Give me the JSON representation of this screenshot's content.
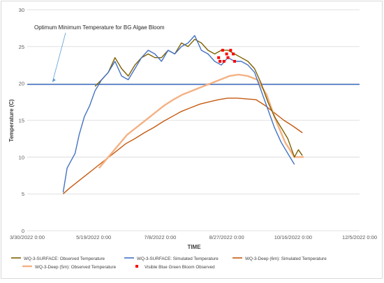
{
  "chart_data": {
    "type": "line",
    "title": "",
    "xlabel": "TIME",
    "ylabel": "Temperature (C)",
    "ylim": [
      0,
      30
    ],
    "yticks": [
      0,
      5,
      10,
      15,
      20,
      25,
      30
    ],
    "xlim": [
      "2022-03-30",
      "2022-12-05"
    ],
    "xticks": [
      "3/30/2022 0:00",
      "5/19/2022 0:00",
      "7/8/2022 0:00",
      "8/27/2022 0:00",
      "10/16/2022 0:00",
      "12/5/2022 0:00"
    ],
    "grid": "horizontal",
    "legend_position": "bottom",
    "annotation": {
      "text": "Optimum Minimum Temperature for BG Algae Bloom",
      "points_to": {
        "x": "2022-04-18",
        "y": 20
      }
    },
    "threshold_line": {
      "y": 19.85,
      "color": "#4472c4"
    },
    "series": [
      {
        "name": "WQ-3-SURFACE: Observed Temperature",
        "color": "#7f6000",
        "kind": "line",
        "points": [
          [
            "2022-05-20",
            19.6
          ],
          [
            "2022-05-25",
            20.5
          ],
          [
            "2022-05-30",
            21.5
          ],
          [
            "2022-06-04",
            23.5
          ],
          [
            "2022-06-09",
            22.0
          ],
          [
            "2022-06-14",
            21.0
          ],
          [
            "2022-06-19",
            22.5
          ],
          [
            "2022-06-24",
            23.5
          ],
          [
            "2022-06-29",
            24.0
          ],
          [
            "2022-07-04",
            23.5
          ],
          [
            "2022-07-09",
            23.5
          ],
          [
            "2022-07-14",
            24.5
          ],
          [
            "2022-07-19",
            24.0
          ],
          [
            "2022-07-24",
            25.5
          ],
          [
            "2022-07-29",
            25.0
          ],
          [
            "2022-08-03",
            26.0
          ],
          [
            "2022-08-08",
            25.5
          ],
          [
            "2022-08-13",
            24.5
          ],
          [
            "2022-08-18",
            24.0
          ],
          [
            "2022-08-23",
            24.5
          ],
          [
            "2022-08-28",
            24.5
          ],
          [
            "2022-09-02",
            24.0
          ],
          [
            "2022-09-07",
            23.5
          ],
          [
            "2022-09-12",
            23.0
          ],
          [
            "2022-09-17",
            22.0
          ],
          [
            "2022-09-22",
            20.0
          ],
          [
            "2022-09-27",
            17.5
          ],
          [
            "2022-10-02",
            15.5
          ],
          [
            "2022-10-07",
            14.0
          ],
          [
            "2022-10-12",
            12.5
          ],
          [
            "2022-10-17",
            10.0
          ],
          [
            "2022-10-20",
            11.0
          ],
          [
            "2022-10-23",
            10.2
          ]
        ]
      },
      {
        "name": "WQ-3-SURFACE: Simulated Temperature",
        "color": "#4472c4",
        "kind": "line",
        "points": [
          [
            "2022-04-26",
            5.2
          ],
          [
            "2022-04-29",
            8.5
          ],
          [
            "2022-05-02",
            9.5
          ],
          [
            "2022-05-05",
            10.5
          ],
          [
            "2022-05-08",
            13.0
          ],
          [
            "2022-05-12",
            15.5
          ],
          [
            "2022-05-16",
            17.0
          ],
          [
            "2022-05-20",
            19.0
          ],
          [
            "2022-05-25",
            20.5
          ],
          [
            "2022-05-30",
            21.5
          ],
          [
            "2022-06-04",
            23.0
          ],
          [
            "2022-06-09",
            21.0
          ],
          [
            "2022-06-14",
            20.5
          ],
          [
            "2022-06-19",
            22.0
          ],
          [
            "2022-06-24",
            23.5
          ],
          [
            "2022-06-29",
            24.5
          ],
          [
            "2022-07-04",
            24.0
          ],
          [
            "2022-07-09",
            23.0
          ],
          [
            "2022-07-14",
            24.5
          ],
          [
            "2022-07-19",
            24.0
          ],
          [
            "2022-07-24",
            25.0
          ],
          [
            "2022-07-29",
            25.5
          ],
          [
            "2022-08-03",
            26.5
          ],
          [
            "2022-08-08",
            24.5
          ],
          [
            "2022-08-13",
            24.0
          ],
          [
            "2022-08-18",
            23.0
          ],
          [
            "2022-08-23",
            22.5
          ],
          [
            "2022-08-28",
            23.5
          ],
          [
            "2022-09-02",
            23.0
          ],
          [
            "2022-09-07",
            23.0
          ],
          [
            "2022-09-12",
            22.5
          ],
          [
            "2022-09-17",
            21.5
          ],
          [
            "2022-09-22",
            19.0
          ],
          [
            "2022-09-27",
            16.5
          ],
          [
            "2022-10-02",
            14.0
          ],
          [
            "2022-10-07",
            12.0
          ],
          [
            "2022-10-12",
            10.5
          ],
          [
            "2022-10-17",
            9.0
          ]
        ]
      },
      {
        "name": "WQ-3-Deep (6m): Simulated Temperature",
        "color": "#c55a11",
        "kind": "line",
        "points": [
          [
            "2022-04-26",
            5.0
          ],
          [
            "2022-05-01",
            5.8
          ],
          [
            "2022-05-08",
            6.8
          ],
          [
            "2022-05-15",
            7.8
          ],
          [
            "2022-05-22",
            8.8
          ],
          [
            "2022-05-29",
            9.8
          ],
          [
            "2022-06-05",
            10.8
          ],
          [
            "2022-06-12",
            11.8
          ],
          [
            "2022-06-19",
            12.5
          ],
          [
            "2022-06-26",
            13.3
          ],
          [
            "2022-07-03",
            14.0
          ],
          [
            "2022-07-10",
            14.8
          ],
          [
            "2022-07-17",
            15.5
          ],
          [
            "2022-07-24",
            16.2
          ],
          [
            "2022-07-31",
            16.7
          ],
          [
            "2022-08-07",
            17.2
          ],
          [
            "2022-08-14",
            17.5
          ],
          [
            "2022-08-21",
            17.8
          ],
          [
            "2022-08-28",
            18.0
          ],
          [
            "2022-09-04",
            18.0
          ],
          [
            "2022-09-11",
            17.9
          ],
          [
            "2022-09-18",
            17.8
          ],
          [
            "2022-09-25",
            17.0
          ],
          [
            "2022-10-02",
            16.0
          ],
          [
            "2022-10-09",
            15.0
          ],
          [
            "2022-10-16",
            14.2
          ],
          [
            "2022-10-23",
            13.3
          ]
        ]
      },
      {
        "name": "WQ-3-Deep (5m): Observed Temperature",
        "color": "#f4b183",
        "kind": "line",
        "points": [
          [
            "2022-05-23",
            8.5
          ],
          [
            "2022-05-30",
            10.0
          ],
          [
            "2022-06-06",
            11.5
          ],
          [
            "2022-06-13",
            13.0
          ],
          [
            "2022-06-20",
            14.0
          ],
          [
            "2022-06-27",
            15.0
          ],
          [
            "2022-07-04",
            16.0
          ],
          [
            "2022-07-11",
            17.0
          ],
          [
            "2022-07-18",
            17.8
          ],
          [
            "2022-07-25",
            18.5
          ],
          [
            "2022-08-01",
            19.0
          ],
          [
            "2022-08-08",
            19.5
          ],
          [
            "2022-08-15",
            20.0
          ],
          [
            "2022-08-22",
            20.5
          ],
          [
            "2022-08-29",
            21.0
          ],
          [
            "2022-09-05",
            21.2
          ],
          [
            "2022-09-12",
            21.0
          ],
          [
            "2022-09-19",
            20.5
          ],
          [
            "2022-09-26",
            18.5
          ],
          [
            "2022-10-03",
            15.0
          ],
          [
            "2022-10-10",
            12.0
          ],
          [
            "2022-10-17",
            10.0
          ],
          [
            "2022-10-24",
            10.0
          ]
        ]
      },
      {
        "name": "Visible Blue Green Bloom Observed",
        "color": "#ff0000",
        "kind": "markers",
        "points": [
          [
            "2022-08-21",
            23.5
          ],
          [
            "2022-08-22",
            23.0
          ],
          [
            "2022-08-24",
            24.5
          ],
          [
            "2022-08-25",
            23.0
          ],
          [
            "2022-08-27",
            24.0
          ],
          [
            "2022-08-28",
            23.5
          ],
          [
            "2022-08-30",
            24.5
          ],
          [
            "2022-09-01",
            24.0
          ],
          [
            "2022-09-02",
            23.0
          ]
        ]
      }
    ]
  }
}
